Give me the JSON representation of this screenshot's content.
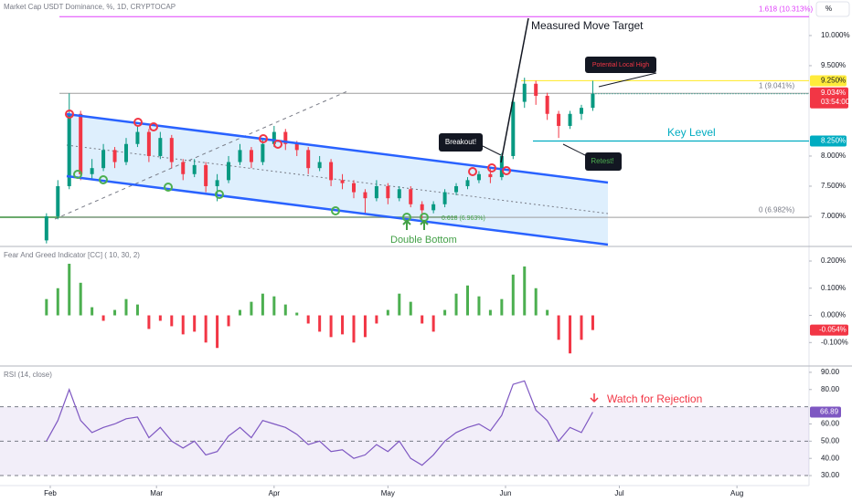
{
  "chart_data": [
    {
      "type": "candlestick",
      "title": "Market Cap USDT Dominance, %, 1D, CRYPTOCAP",
      "scale_button": "%",
      "x": [
        -1,
        2,
        5,
        8,
        11,
        14,
        17,
        20,
        23,
        26,
        29,
        32,
        35,
        38,
        41,
        44,
        47,
        50,
        53,
        56,
        59,
        62,
        65,
        68,
        71,
        74,
        77,
        80,
        83,
        86,
        89,
        92,
        95,
        98,
        101,
        104,
        107,
        110,
        113,
        116,
        119,
        122,
        125,
        128,
        131,
        134,
        137,
        140,
        143
      ],
      "xlim": [
        -13.25,
        200
      ],
      "xticks": [
        {
          "value": 0,
          "label": "Feb"
        },
        {
          "value": 28,
          "label": "Mar"
        },
        {
          "value": 59,
          "label": "Apr"
        },
        {
          "value": 89,
          "label": "May"
        },
        {
          "value": 120,
          "label": "Jun"
        },
        {
          "value": 150,
          "label": "Jul"
        },
        {
          "value": 181,
          "label": "Aug"
        }
      ],
      "ylim": [
        6.53,
        10.59
      ],
      "yticks": [
        {
          "value": 7,
          "label": "7.000%"
        },
        {
          "value": 7.5,
          "label": "7.500%"
        },
        {
          "value": 8,
          "label": "8.000%"
        },
        {
          "value": 9.5,
          "label": "9.500%"
        },
        {
          "value": 10,
          "label": "10.000%"
        }
      ],
      "grid": false,
      "up_color": "#089981",
      "down_color": "#f23645",
      "open": [
        6.6,
        7.0,
        7.5,
        8.7,
        7.7,
        7.8,
        8.1,
        7.9,
        8.2,
        8.4,
        8.0,
        8.3,
        7.9,
        7.7,
        7.85,
        7.5,
        7.6,
        7.9,
        8.1,
        7.9,
        8.2,
        8.4,
        8.2,
        8.1,
        7.8,
        7.9,
        7.6,
        7.55,
        7.4,
        7.3,
        7.5,
        7.3,
        7.45,
        7.2,
        7.1,
        7.2,
        7.4,
        7.5,
        7.6,
        7.7,
        7.65,
        8.0,
        8.9,
        9.2,
        9.0,
        8.7,
        8.5,
        8.7,
        8.8
      ],
      "high": [
        7.05,
        7.6,
        9.04,
        8.75,
        7.95,
        8.2,
        8.15,
        8.3,
        8.5,
        8.45,
        8.4,
        8.35,
        7.95,
        7.95,
        7.9,
        7.7,
        8.0,
        8.2,
        8.15,
        8.3,
        8.5,
        8.45,
        8.25,
        8.15,
        8.0,
        7.95,
        7.7,
        7.6,
        7.45,
        7.6,
        7.55,
        7.5,
        7.5,
        7.25,
        7.25,
        7.45,
        7.55,
        7.65,
        7.75,
        7.8,
        8.05,
        8.95,
        9.3,
        9.25,
        9.05,
        8.75,
        8.75,
        8.85,
        9.25
      ],
      "low": [
        6.55,
        6.95,
        7.45,
        7.6,
        7.6,
        7.75,
        7.8,
        7.85,
        8.15,
        7.9,
        7.95,
        7.8,
        7.6,
        7.65,
        7.4,
        7.25,
        7.55,
        7.85,
        7.8,
        7.85,
        8.15,
        8.1,
        8.0,
        7.7,
        7.75,
        7.5,
        7.45,
        7.3,
        7.05,
        7.25,
        7.2,
        7.25,
        7.15,
        6.96,
        7.05,
        7.15,
        7.35,
        7.45,
        7.55,
        7.55,
        7.6,
        7.95,
        8.8,
        8.85,
        8.6,
        8.3,
        8.45,
        8.6,
        8.75
      ],
      "close": [
        7.0,
        7.5,
        8.7,
        7.7,
        7.8,
        8.1,
        7.9,
        8.2,
        8.4,
        8.0,
        8.3,
        7.9,
        7.7,
        7.85,
        7.5,
        7.6,
        7.9,
        8.1,
        7.9,
        8.2,
        8.4,
        8.2,
        8.1,
        7.8,
        7.9,
        7.6,
        7.55,
        7.4,
        7.3,
        7.5,
        7.3,
        7.45,
        7.2,
        7.1,
        7.2,
        7.4,
        7.5,
        7.6,
        7.7,
        7.65,
        8.0,
        8.9,
        9.2,
        9.0,
        8.7,
        8.5,
        8.7,
        8.8,
        9.034
      ],
      "last_label": "9.034%",
      "countdown": "03:54:00",
      "levels": [
        {
          "value": 10.313,
          "label": "1.618 (10.313%)",
          "color": "#e040fb",
          "tag": false
        },
        {
          "value": 9.041,
          "label": "1 (9.041%)",
          "color": "#9e9e9e",
          "tag": false
        },
        {
          "value": 6.982,
          "label": "0 (6.982%)",
          "color": "#9e9e9e",
          "tag": false
        },
        {
          "value": 9.25,
          "label": "9.250%",
          "color": "#ffeb3b",
          "tag": true
        },
        {
          "value": 8.25,
          "label": "8.250%",
          "color": "#00acc1",
          "tag": true
        }
      ],
      "annotations": [
        {
          "text": "Measured Move Target",
          "color": "#131722"
        },
        {
          "text": "Potential Local High",
          "color": "#f23645"
        },
        {
          "text": "Breakout!",
          "color": "#ffffff"
        },
        {
          "text": "Retest!",
          "color": "#4caf50"
        },
        {
          "text": "Key Level",
          "color": "#00acc1"
        },
        {
          "text": "Double Bottom",
          "color": "#43a047"
        },
        {
          "text": "0.618 (6.963%)",
          "color": "#43a047"
        }
      ]
    },
    {
      "type": "histogram",
      "title": "Fear And Greed Indicator [CC] ( 10, 30, 2)",
      "values": [
        0.06,
        0.1,
        0.19,
        0.12,
        0.03,
        -0.02,
        0.02,
        0.06,
        0.04,
        -0.05,
        -0.02,
        -0.04,
        -0.07,
        -0.06,
        -0.1,
        -0.12,
        -0.04,
        0.02,
        0.05,
        0.08,
        0.07,
        0.04,
        0.01,
        -0.03,
        -0.06,
        -0.08,
        -0.07,
        -0.1,
        -0.08,
        -0.03,
        0.02,
        0.08,
        0.05,
        -0.03,
        -0.06,
        0.02,
        0.08,
        0.11,
        0.07,
        0.02,
        0.06,
        0.15,
        0.18,
        0.1,
        0.02,
        -0.09,
        -0.14,
        -0.09,
        -0.054
      ],
      "last_label": "-0.054%",
      "up_color": "#4caf50",
      "down_color": "#f23645",
      "ylim": [
        -0.183,
        0.247
      ],
      "yticks": [
        {
          "value": -0.1,
          "label": "-0.100%"
        },
        {
          "value": 0,
          "label": "0.000%"
        },
        {
          "value": 0.1,
          "label": "0.100%"
        },
        {
          "value": 0.2,
          "label": "0.200%"
        }
      ]
    },
    {
      "type": "line",
      "title": "RSI (14, close)",
      "values": [
        50,
        62,
        80,
        62,
        55,
        58,
        60,
        63,
        64,
        52,
        58,
        50,
        46,
        50,
        42,
        44,
        53,
        58,
        52,
        62,
        60,
        58,
        54,
        48,
        50,
        44,
        45,
        40,
        42,
        48,
        44,
        50,
        40,
        36,
        42,
        50,
        55,
        58,
        60,
        56,
        65,
        83,
        85,
        68,
        62,
        50,
        58,
        55,
        66.89
      ],
      "color": "#7e57c2",
      "band": [
        30,
        70
      ],
      "ylim": [
        24.2,
        92.6
      ],
      "yticks": [
        {
          "value": 30,
          "label": "30.00"
        },
        {
          "value": 40,
          "label": "40.00"
        },
        {
          "value": 50,
          "label": "50.00"
        },
        {
          "value": 60,
          "label": "60.00"
        },
        {
          "value": 80,
          "label": "80.00"
        },
        {
          "value": 90,
          "label": "90.00"
        }
      ],
      "annotation": {
        "text": "Watch for Rejection",
        "color": "#f23645"
      }
    }
  ]
}
